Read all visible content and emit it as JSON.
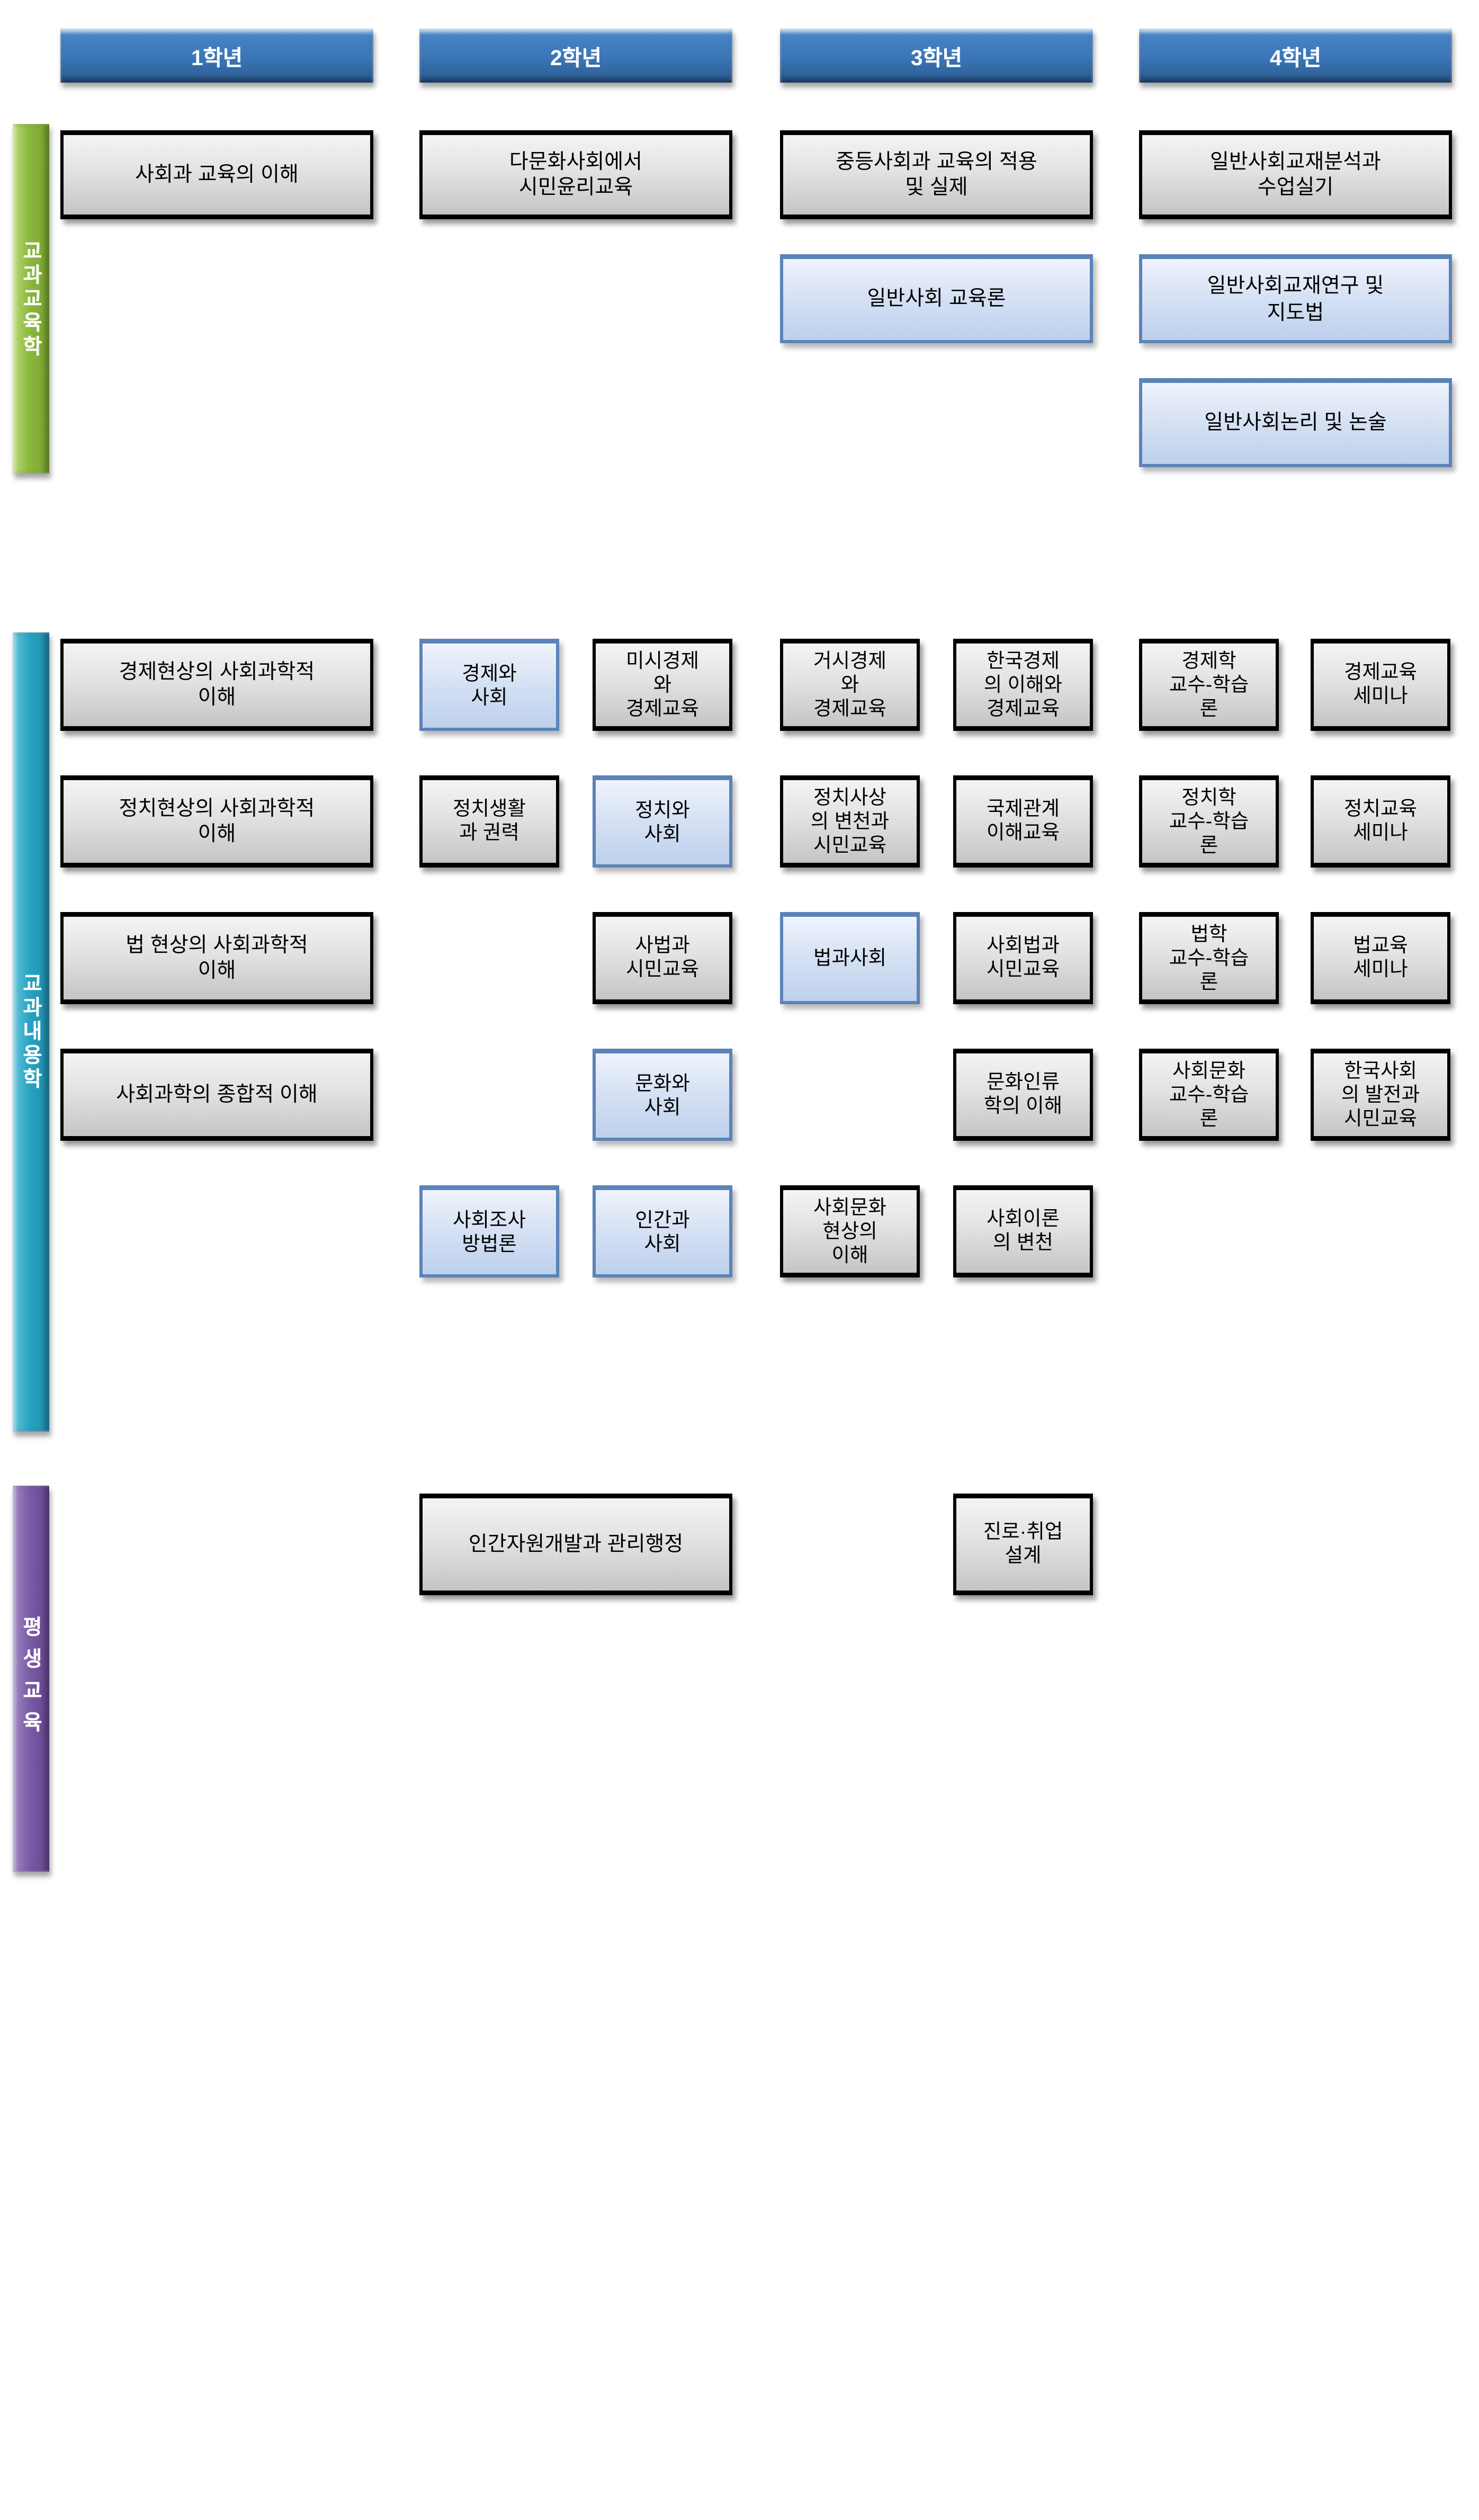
{
  "headers": [
    {
      "label": "1학년"
    },
    {
      "label": "2학년"
    },
    {
      "label": "3학년"
    },
    {
      "label": "4학년"
    }
  ],
  "sections": [
    {
      "label": "교과교육학",
      "color": "#8cb83e",
      "boxes": [
        {
          "label": "사회과 교육의 이해",
          "variant": "gray"
        },
        {
          "label": "다문화사회에서\n시민윤리교육",
          "variant": "gray"
        },
        {
          "label": "중등사회과 교육의 적용\n및 실제",
          "variant": "gray"
        },
        {
          "label": "일반사회교재분석과\n수업실기",
          "variant": "gray"
        },
        {
          "label": "일반사회 교육론",
          "variant": "blue"
        },
        {
          "label": "일반사회교재연구 및\n지도법",
          "variant": "blue"
        },
        {
          "label": "일반사회논리 및 논술",
          "variant": "blue"
        }
      ]
    },
    {
      "label": "교과내용학",
      "color": "#29a3c3",
      "boxes": [
        {
          "label": "경제현상의 사회과학적\n이해",
          "variant": "gray"
        },
        {
          "label": "경제와\n사회",
          "variant": "blue"
        },
        {
          "label": "미시경제\n와\n경제교육",
          "variant": "gray"
        },
        {
          "label": "거시경제\n와\n경제교육",
          "variant": "gray"
        },
        {
          "label": "한국경제\n의 이해와\n경제교육",
          "variant": "gray"
        },
        {
          "label": "경제학\n교수-학습\n론",
          "variant": "gray"
        },
        {
          "label": "경제교육\n세미나",
          "variant": "gray"
        },
        {
          "label": "정치현상의 사회과학적\n이해",
          "variant": "gray"
        },
        {
          "label": "정치생활\n과 권력",
          "variant": "gray"
        },
        {
          "label": "정치와\n사회",
          "variant": "blue"
        },
        {
          "label": "정치사상\n의 변천과\n시민교육",
          "variant": "gray"
        },
        {
          "label": "국제관계\n이해교육",
          "variant": "gray"
        },
        {
          "label": "정치학\n교수-학습\n론",
          "variant": "gray"
        },
        {
          "label": "정치교육\n세미나",
          "variant": "gray"
        },
        {
          "label": "법 현상의 사회과학적\n이해",
          "variant": "gray"
        },
        {
          "label": "사법과\n시민교육",
          "variant": "gray"
        },
        {
          "label": "법과사회",
          "variant": "blue"
        },
        {
          "label": "사회법과\n시민교육",
          "variant": "gray"
        },
        {
          "label": "법학\n교수-학습\n론",
          "variant": "gray"
        },
        {
          "label": "법교육\n세미나",
          "variant": "gray"
        },
        {
          "label": "사회과학의 종합적 이해",
          "variant": "gray"
        },
        {
          "label": "문화와\n사회",
          "variant": "blue"
        },
        {
          "label": "문화인류\n학의 이해",
          "variant": "gray"
        },
        {
          "label": "사회문화\n교수-학습\n론",
          "variant": "gray"
        },
        {
          "label": "한국사회\n의 발전과\n시민교육",
          "variant": "gray"
        },
        {
          "label": "사회조사\n방법론",
          "variant": "blue"
        },
        {
          "label": "인간과\n사회",
          "variant": "blue"
        },
        {
          "label": "사회문화\n현상의\n이해",
          "variant": "gray"
        },
        {
          "label": "사회이론\n의 변천",
          "variant": "gray"
        }
      ]
    },
    {
      "label": "평생교육",
      "color": "#7a5ba6",
      "boxes": [
        {
          "label": "인간자원개발과 관리행정",
          "variant": "gray"
        },
        {
          "label": "진로·취업\n설계",
          "variant": "gray"
        }
      ]
    }
  ],
  "colors": {
    "header_blue": "#3a76b6",
    "box_gray": "#d9d9d9",
    "box_blue": "#cfdcf2",
    "box_blue_border": "#5b83b8",
    "sidebar_green": "#8cb83e",
    "sidebar_teal": "#29a3c3",
    "sidebar_purple": "#7a5ba6"
  }
}
